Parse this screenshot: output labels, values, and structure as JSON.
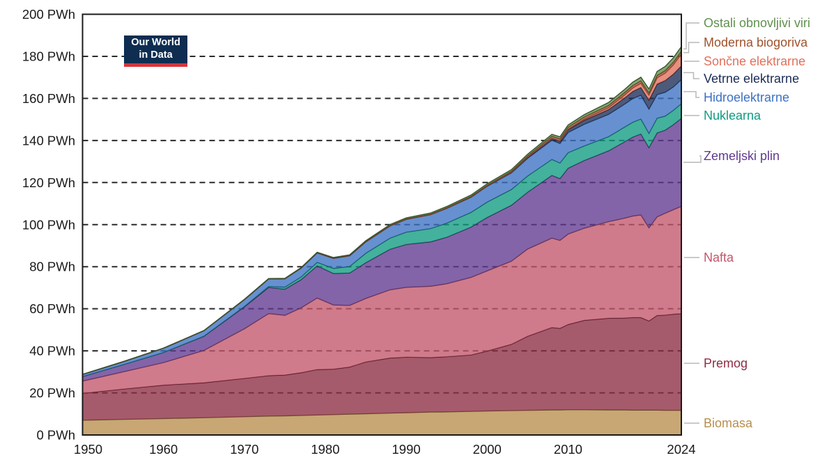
{
  "logo": {
    "line1": "Our World",
    "line2": "in Data"
  },
  "chart_data": {
    "type": "area",
    "stacked": true,
    "unit": "PWh",
    "x_label": "",
    "ylabel": "",
    "grid": "dashed-horizontal",
    "gridline_color": "#2a2a2a",
    "frame_color": "#1a1a1a",
    "background": "#ffffff",
    "legend_position": "right",
    "y_axis": {
      "min": 0,
      "max": 200,
      "step": 20,
      "suffix": " PWh",
      "tick_labels": [
        "0 PWh",
        "20 PWh",
        "40 PWh",
        "60 PWh",
        "80 PWh",
        "100 PWh",
        "120 PWh",
        "140 PWh",
        "160 PWh",
        "180 PWh",
        "200 PWh"
      ]
    },
    "x_axis": {
      "min": 1950,
      "max": 2024,
      "ticks": [
        1950,
        1960,
        1970,
        1980,
        1990,
        2000,
        2010,
        2024
      ]
    },
    "years": [
      1950,
      1955,
      1960,
      1965,
      1970,
      1973,
      1975,
      1977,
      1979,
      1981,
      1983,
      1985,
      1988,
      1990,
      1993,
      1995,
      1998,
      2000,
      2003,
      2005,
      2008,
      2009,
      2010,
      2012,
      2015,
      2017,
      2018,
      2019,
      2020,
      2021,
      2022,
      2023,
      2024
    ],
    "series": [
      {
        "key": "biomass",
        "label": "Biomasa",
        "color": "#b98e4d",
        "values": [
          7.0,
          7.4,
          7.8,
          8.2,
          8.7,
          9.0,
          9.1,
          9.3,
          9.5,
          9.7,
          9.9,
          10.1,
          10.4,
          10.6,
          10.9,
          11.0,
          11.2,
          11.4,
          11.6,
          11.7,
          11.9,
          11.9,
          12.0,
          12.0,
          11.9,
          11.9,
          11.8,
          11.8,
          11.8,
          11.8,
          11.7,
          11.7,
          11.7
        ]
      },
      {
        "key": "coal",
        "label": "Premog",
        "color": "#8c2d43",
        "values": [
          12.8,
          14.4,
          15.9,
          16.6,
          18.2,
          19.2,
          19.4,
          20.3,
          21.6,
          21.6,
          22.4,
          24.6,
          26.2,
          26.4,
          25.9,
          26.2,
          26.8,
          28.5,
          31.5,
          35.2,
          39.2,
          38.8,
          40.5,
          42.5,
          43.6,
          43.7,
          44.0,
          44.0,
          42.4,
          45.0,
          45.3,
          45.7,
          46.0
        ]
      },
      {
        "key": "oil",
        "label": "Nafta",
        "color": "#c2566c",
        "values": [
          5.8,
          8.2,
          10.7,
          15.4,
          23.6,
          29.5,
          28.4,
          30.8,
          34.0,
          30.5,
          29.3,
          30.2,
          32.4,
          33.2,
          33.9,
          34.7,
          36.9,
          38.1,
          39.5,
          41.5,
          42.5,
          41.8,
          43.0,
          43.8,
          45.9,
          47.5,
          48.3,
          48.8,
          44.3,
          46.9,
          48.4,
          49.7,
          51.0
        ]
      },
      {
        "key": "gas",
        "label": "Zemeljski plin",
        "color": "#60398f",
        "values": [
          2.2,
          3.4,
          4.8,
          6.7,
          10.4,
          12.4,
          12.4,
          13.4,
          15.3,
          15.0,
          15.4,
          17.0,
          19.3,
          20.4,
          21.1,
          22.1,
          23.9,
          25.4,
          26.6,
          27.0,
          29.8,
          29.4,
          31.3,
          32.2,
          33.7,
          36.3,
          37.5,
          38.5,
          38.1,
          39.9,
          39.5,
          40.4,
          41.8
        ]
      },
      {
        "key": "nuclear",
        "label": "Nuklearna",
        "color": "#0f9b80",
        "values": [
          0,
          0,
          0.02,
          0.07,
          0.2,
          0.5,
          1.0,
          1.3,
          1.7,
          2.4,
          3.1,
          4.5,
          5.3,
          5.8,
          6.3,
          6.7,
          7.0,
          7.3,
          7.5,
          7.7,
          7.6,
          7.4,
          7.4,
          6.9,
          6.7,
          7.0,
          7.1,
          7.1,
          6.8,
          7.0,
          6.7,
          6.8,
          7.0
        ]
      },
      {
        "key": "hydro",
        "label": "Hidroelektrarne",
        "color": "#3c71c3",
        "values": [
          1.0,
          1.4,
          2.0,
          2.6,
          3.3,
          3.6,
          4.0,
          4.2,
          4.5,
          4.8,
          5.1,
          5.4,
          5.8,
          6.1,
          6.6,
          7.0,
          7.2,
          7.5,
          7.9,
          8.4,
          9.1,
          9.3,
          9.6,
          10.3,
          10.6,
          10.9,
          11.2,
          11.3,
          11.5,
          11.2,
          11.3,
          11.1,
          11.5
        ]
      },
      {
        "key": "wind",
        "label": "Vetrne elektrarne",
        "color": "#1c2c55",
        "values": [
          0,
          0,
          0,
          0,
          0,
          0,
          0,
          0,
          0,
          0.01,
          0.01,
          0.02,
          0.03,
          0.04,
          0.07,
          0.1,
          0.13,
          0.17,
          0.3,
          0.5,
          0.9,
          1.1,
          1.3,
          1.9,
          2.3,
          3.0,
          3.4,
          3.7,
          4.3,
          5.0,
          5.6,
          6.1,
          6.5
        ]
      },
      {
        "key": "solar",
        "label": "Sončne elektrarne",
        "color": "#e2705b",
        "values": [
          0,
          0,
          0,
          0,
          0,
          0,
          0,
          0,
          0,
          0,
          0,
          0,
          0,
          0,
          0,
          0,
          0.01,
          0.01,
          0.02,
          0.03,
          0.08,
          0.12,
          0.2,
          0.5,
          0.9,
          1.4,
          1.7,
          2.0,
          2.4,
          3.0,
          3.5,
          4.4,
          5.6
        ]
      },
      {
        "key": "biofuels",
        "label": "Moderna biogoriva",
        "color": "#a0522d",
        "values": [
          0,
          0,
          0,
          0,
          0,
          0,
          0,
          0.03,
          0.06,
          0.1,
          0.13,
          0.16,
          0.19,
          0.21,
          0.23,
          0.25,
          0.3,
          0.35,
          0.5,
          0.65,
          0.95,
          1.0,
          1.05,
          1.1,
          1.1,
          1.15,
          1.15,
          1.2,
          1.1,
          1.15,
          1.25,
          1.3,
          1.35
        ]
      },
      {
        "key": "other",
        "label": "Ostali obnovljivi viri",
        "color": "#61904f",
        "values": [
          0.05,
          0.06,
          0.08,
          0.1,
          0.13,
          0.16,
          0.18,
          0.2,
          0.23,
          0.26,
          0.3,
          0.35,
          0.42,
          0.47,
          0.52,
          0.57,
          0.62,
          0.67,
          0.75,
          0.8,
          0.9,
          0.95,
          1.0,
          1.1,
          1.35,
          1.45,
          1.55,
          1.65,
          1.75,
          1.85,
          1.95,
          2.05,
          2.15
        ]
      }
    ],
    "legend": {
      "items": [
        {
          "series": "other",
          "label": "Ostali obnovljivi viri",
          "color": "#61904f"
        },
        {
          "series": "biofuels",
          "label": "Moderna biogoriva",
          "color": "#a0522d"
        },
        {
          "series": "solar",
          "label": "Sončne elektrarne",
          "color": "#e2705b"
        },
        {
          "series": "wind",
          "label": "Vetrne elektrarne",
          "color": "#1c2c55"
        },
        {
          "series": "hydro",
          "label": "Hidroelektrarne",
          "color": "#3c71c3"
        },
        {
          "series": "nuclear",
          "label": "Nuklearna",
          "color": "#0f9b80"
        },
        {
          "series": "gas",
          "label": "Zemeljski plin",
          "color": "#60398f"
        },
        {
          "series": "oil",
          "label": "Nafta",
          "color": "#c2566c"
        },
        {
          "series": "coal",
          "label": "Premog",
          "color": "#8c2d43"
        },
        {
          "series": "biomass",
          "label": "Biomasa",
          "color": "#b98e4d"
        }
      ]
    }
  }
}
